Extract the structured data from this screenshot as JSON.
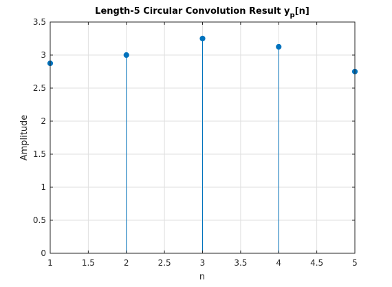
{
  "chart_data": {
    "type": "stem",
    "title": "Length-5 Circular Convolution Result y",
    "title_subscript": "p",
    "title_suffix": "[n]",
    "xlabel": "n",
    "ylabel": "Amplitude",
    "x": [
      1,
      2,
      3,
      4,
      5
    ],
    "values": [
      2.875,
      3.0,
      3.25,
      3.125,
      2.75
    ],
    "xlim": [
      1,
      5
    ],
    "ylim": [
      0,
      3.5
    ],
    "xticks": [
      "1",
      "1.5",
      "2",
      "2.5",
      "3",
      "3.5",
      "4",
      "4.5",
      "5"
    ],
    "yticks": [
      "0",
      "0.5",
      "1",
      "1.5",
      "2",
      "2.5",
      "3",
      "3.5"
    ],
    "grid": true,
    "colors": {
      "stem": "#0072BD",
      "grid": "#DFDFDF",
      "axes": "#262626"
    }
  }
}
